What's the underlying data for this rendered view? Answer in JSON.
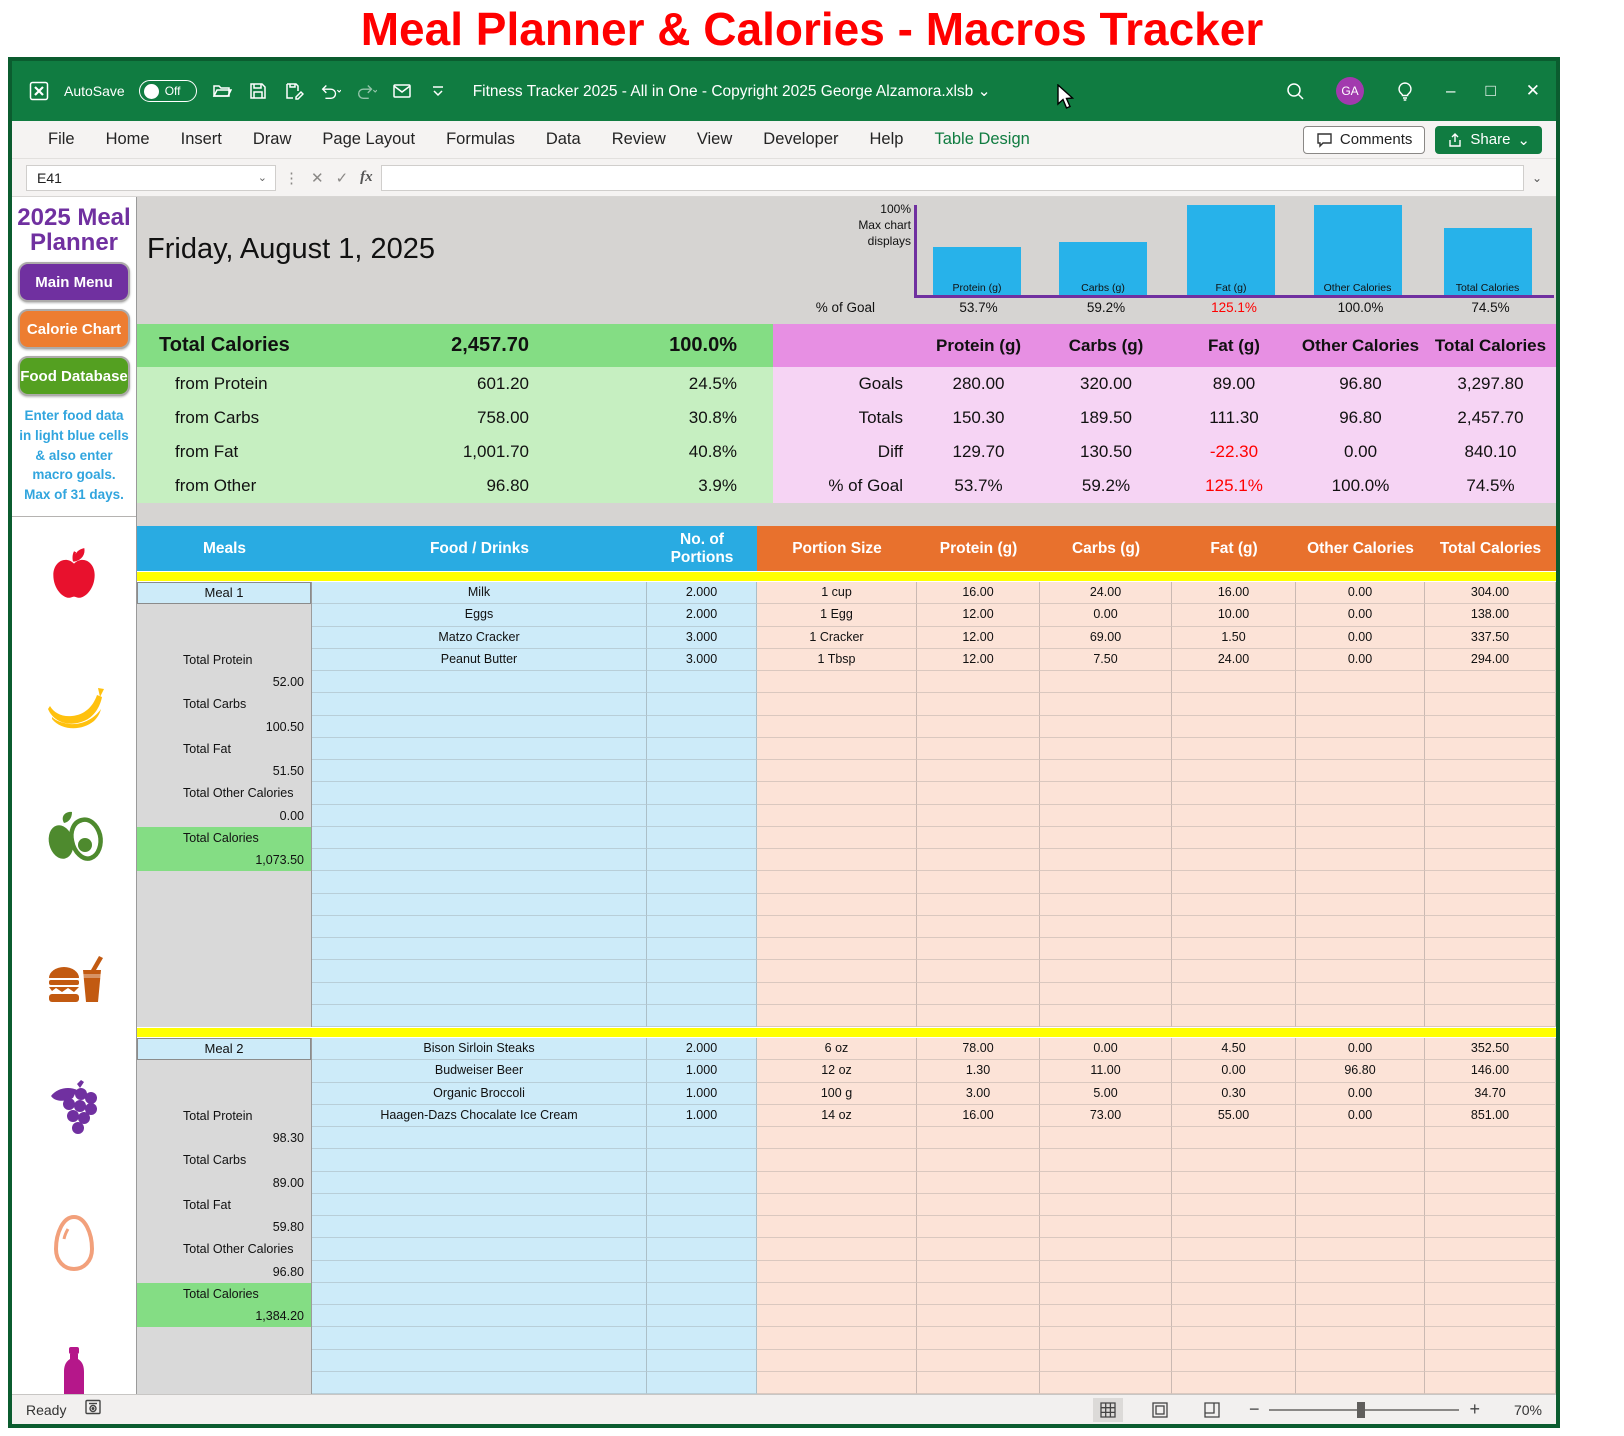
{
  "page_title": "Meal Planner & Calories - Macros Tracker",
  "colors": {
    "accent_green": "#107C41",
    "bar_blue": "#27B2EA",
    "axis_purple": "#7030A0",
    "warn_red": "#FF0000",
    "header_green": "#84DD84",
    "header_pink": "#E78FE3"
  },
  "titlebar": {
    "autosave_label": "AutoSave",
    "autosave_state": "Off",
    "file_name": "Fitness Tracker 2025 - All in One - Copyright 2025 George Alzamora.xlsb",
    "avatar_initials": "GA"
  },
  "ribbon": {
    "tabs": [
      "File",
      "Home",
      "Insert",
      "Draw",
      "Page Layout",
      "Formulas",
      "Data",
      "Review",
      "View",
      "Developer",
      "Help",
      "Table Design"
    ],
    "active_contextual_tab": "Table Design",
    "comments_label": "Comments",
    "share_label": "Share"
  },
  "formula_bar": {
    "cell_ref": "E41",
    "fx_label": "fx",
    "formula_value": ""
  },
  "sidebar": {
    "title": "2025 Meal Planner",
    "buttons": [
      {
        "label": "Main Menu"
      },
      {
        "label": "Calorie Chart"
      },
      {
        "label": "Food Database"
      }
    ],
    "note": "Enter food data in light blue cells & also enter macro goals. Max of 31 days.",
    "icons": [
      "apple-icon",
      "banana-icon",
      "avocado-icon",
      "burger-drink-icon",
      "grapes-icon",
      "egg-icon",
      "wine-bottle-icon"
    ]
  },
  "chart_data": {
    "type": "bar",
    "categories": [
      "Protein (g)",
      "Carbs (g)",
      "Fat (g)",
      "Other Calories",
      "Total Calories"
    ],
    "values": [
      53.7,
      59.2,
      125.1,
      100.0,
      74.5
    ],
    "value_labels": [
      "53.7%",
      "59.2%",
      "125.1%",
      "100.0%",
      "74.5%"
    ],
    "title": "",
    "xlabel": "",
    "ylabel": "% of Goal",
    "ylim": [
      0,
      100
    ],
    "display_cap_note": [
      "100%",
      "Max chart",
      "displays"
    ],
    "legend": "none",
    "grid": false
  },
  "sheet": {
    "date_header": "Friday, August 1, 2025",
    "pct_goal_row": {
      "label": "% of Goal",
      "values": [
        "53.7%",
        "59.2%",
        "125.1%",
        "100.0%",
        "74.5%"
      ],
      "red": [
        false,
        false,
        true,
        false,
        false
      ]
    },
    "calorie_summary": {
      "header": {
        "label": "Total Calories",
        "value": "2,457.70",
        "pct": "100.0%"
      },
      "rows": [
        {
          "label": "from Protein",
          "value": "601.20",
          "pct": "24.5%"
        },
        {
          "label": "from Carbs",
          "value": "758.00",
          "pct": "30.8%"
        },
        {
          "label": "from Fat",
          "value": "1,001.70",
          "pct": "40.8%"
        },
        {
          "label": "from Other",
          "value": "96.80",
          "pct": "3.9%"
        }
      ]
    },
    "macro_summary": {
      "columns": [
        "Protein (g)",
        "Carbs (g)",
        "Fat (g)",
        "Other Calories",
        "Total Calories"
      ],
      "rows": [
        {
          "label": "Goals",
          "values": [
            "280.00",
            "320.00",
            "89.00",
            "96.80",
            "3,297.80"
          ],
          "red": [
            false,
            false,
            false,
            false,
            false
          ]
        },
        {
          "label": "Totals",
          "values": [
            "150.30",
            "189.50",
            "111.30",
            "96.80",
            "2,457.70"
          ],
          "red": [
            false,
            false,
            false,
            false,
            false
          ]
        },
        {
          "label": "Diff",
          "values": [
            "129.70",
            "130.50",
            "-22.30",
            "0.00",
            "840.10"
          ],
          "red": [
            false,
            false,
            true,
            false,
            false
          ]
        },
        {
          "label": "% of Goal",
          "values": [
            "53.7%",
            "59.2%",
            "125.1%",
            "100.0%",
            "74.5%"
          ],
          "red": [
            false,
            false,
            true,
            false,
            false
          ]
        }
      ]
    },
    "meals_table": {
      "headers_left": [
        "Meals",
        "Food / Drinks",
        "No. of Portions"
      ],
      "headers_right": [
        "Portion Size",
        "Protein (g)",
        "Carbs (g)",
        "Fat (g)",
        "Other Calories",
        "Total Calories"
      ],
      "meals": [
        {
          "name": "Meal 1",
          "visible_rows": 20,
          "rows": [
            {
              "food": "Milk",
              "portions": "2.000",
              "size": "1 cup",
              "protein": "16.00",
              "carbs": "24.00",
              "fat": "16.00",
              "other": "0.00",
              "total": "304.00"
            },
            {
              "food": "Eggs",
              "portions": "2.000",
              "size": "1 Egg",
              "protein": "12.00",
              "carbs": "0.00",
              "fat": "10.00",
              "other": "0.00",
              "total": "138.00"
            },
            {
              "food": "Matzo Cracker",
              "portions": "3.000",
              "size": "1 Cracker",
              "protein": "12.00",
              "carbs": "69.00",
              "fat": "1.50",
              "other": "0.00",
              "total": "337.50"
            },
            {
              "food": "Peanut Butter",
              "portions": "3.000",
              "size": "1 Tbsp",
              "protein": "12.00",
              "carbs": "7.50",
              "fat": "24.00",
              "other": "0.00",
              "total": "294.00"
            }
          ],
          "totals": [
            {
              "label": "Total Protein",
              "value": "52.00"
            },
            {
              "label": "Total Carbs",
              "value": "100.50"
            },
            {
              "label": "Total Fat",
              "value": "51.50"
            },
            {
              "label": "Total Other Calories",
              "value": "0.00"
            }
          ],
          "total_calories": {
            "label": "Total Calories",
            "value": "1,073.50"
          }
        },
        {
          "name": "Meal 2",
          "visible_rows": 16,
          "rows": [
            {
              "food": "Bison Sirloin Steaks",
              "portions": "2.000",
              "size": "6 oz",
              "protein": "78.00",
              "carbs": "0.00",
              "fat": "4.50",
              "other": "0.00",
              "total": "352.50"
            },
            {
              "food": "Budweiser Beer",
              "portions": "1.000",
              "size": "12 oz",
              "protein": "1.30",
              "carbs": "11.00",
              "fat": "0.00",
              "other": "96.80",
              "total": "146.00"
            },
            {
              "food": "Organic Broccoli",
              "portions": "1.000",
              "size": "100 g",
              "protein": "3.00",
              "carbs": "5.00",
              "fat": "0.30",
              "other": "0.00",
              "total": "34.70"
            },
            {
              "food": "Haagen-Dazs Chocalate Ice Cream",
              "portions": "1.000",
              "size": "14 oz",
              "protein": "16.00",
              "carbs": "73.00",
              "fat": "55.00",
              "other": "0.00",
              "total": "851.00"
            }
          ],
          "totals": [
            {
              "label": "Total Protein",
              "value": "98.30"
            },
            {
              "label": "Total Carbs",
              "value": "89.00"
            },
            {
              "label": "Total Fat",
              "value": "59.80"
            },
            {
              "label": "Total Other Calories",
              "value": "96.80"
            }
          ],
          "total_calories": {
            "label": "Total Calories",
            "value": "1,384.20"
          }
        }
      ]
    }
  },
  "status_bar": {
    "ready_label": "Ready",
    "zoom_label": "70%"
  }
}
